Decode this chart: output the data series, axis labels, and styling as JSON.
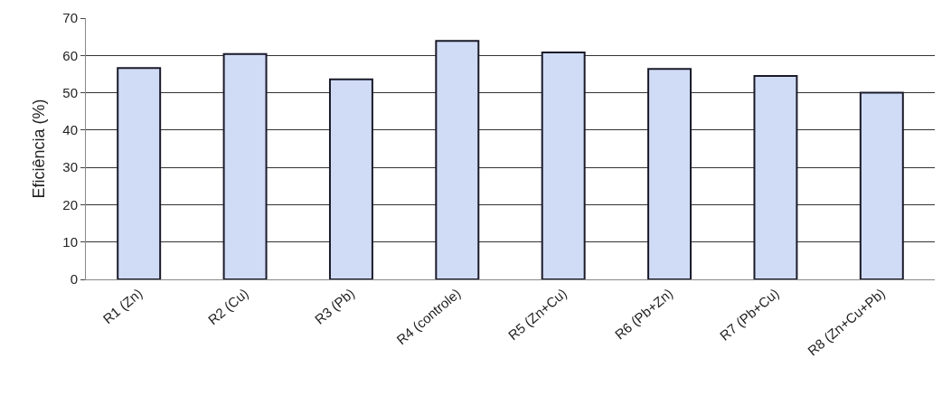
{
  "chart_data": {
    "type": "bar",
    "ylabel": "Eficiência (%)",
    "categories": [
      "R1 (Zn)",
      "R2 (Cu)",
      "R3 (Pb)",
      "R4 (controle)",
      "R5 (Zn+Cu)",
      "R6 (Pb+Zn)",
      "R7 (Pb+Cu)",
      "R8 (Zn+Cu+Pb)"
    ],
    "values": [
      56.6,
      60.4,
      53.6,
      63.9,
      60.8,
      56.4,
      54.5,
      50.0
    ],
    "color": "#d0dcf6",
    "ylim": [
      0,
      70
    ],
    "yticks": [
      0,
      10,
      20,
      30,
      40,
      50,
      60,
      70
    ],
    "grid": "y",
    "legend": false
  }
}
